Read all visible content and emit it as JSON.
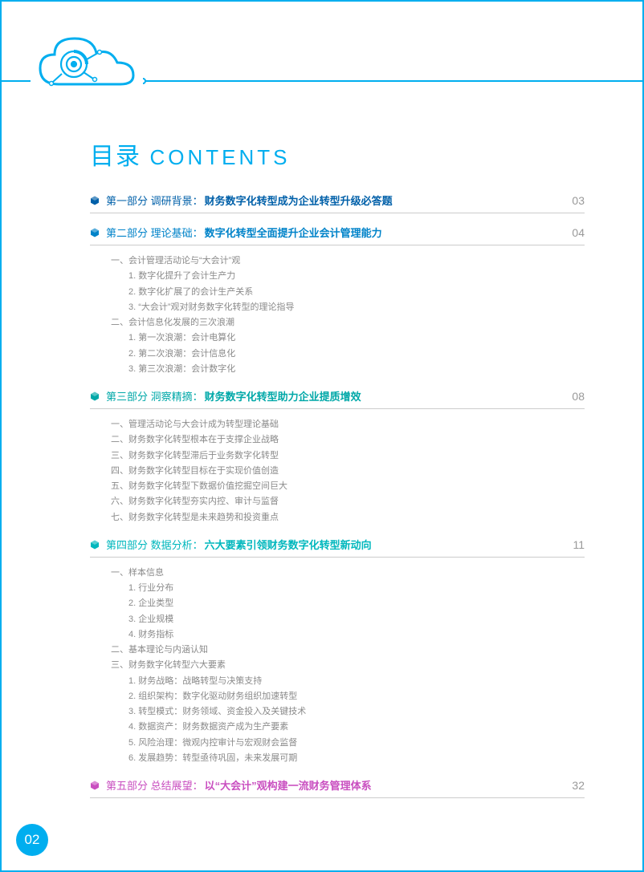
{
  "page_number": "02",
  "title": {
    "cn": "目录",
    "en": "CONTENTS"
  },
  "colors": {
    "accent": "#00aeef",
    "rule": "#cccccc",
    "subtext": "#8a8a8a",
    "pagenum": "#999999",
    "section_colors": [
      "#0060a9",
      "#0083c9",
      "#00a8a8",
      "#00b7bd",
      "#c94fc0"
    ]
  },
  "sections": [
    {
      "part": "第一部分",
      "tag": "调研背景：",
      "topic": "财务数字化转型成为企业转型升级必答题",
      "page": "03",
      "color": "#0060a9",
      "items": []
    },
    {
      "part": "第二部分",
      "tag": "理论基础：",
      "topic": "数字化转型全面提升企业会计管理能力",
      "page": "04",
      "color": "#0083c9",
      "items": [
        {
          "t": "一、会计管理活动论与“大会计”观",
          "l": 1
        },
        {
          "t": "1. 数字化提升了会计生产力",
          "l": 2
        },
        {
          "t": "2. 数字化扩展了的会计生产关系",
          "l": 2
        },
        {
          "t": "3. “大会计”观对财务数字化转型的理论指导",
          "l": 2
        },
        {
          "t": "二、会计信息化发展的三次浪潮",
          "l": 1
        },
        {
          "t": "1. 第一次浪潮：会计电算化",
          "l": 2
        },
        {
          "t": "2. 第二次浪潮：会计信息化",
          "l": 2
        },
        {
          "t": "3. 第三次浪潮：会计数字化",
          "l": 2
        }
      ]
    },
    {
      "part": "第三部分",
      "tag": "洞察精摘：",
      "topic": "财务数字化转型助力企业提质增效",
      "page": "08",
      "color": "#00a8a8",
      "items": [
        {
          "t": "一、管理活动论与大会计成为转型理论基础",
          "l": 1
        },
        {
          "t": "二、财务数字化转型根本在于支撑企业战略",
          "l": 1
        },
        {
          "t": "三、财务数字化转型滞后于业务数字化转型",
          "l": 1
        },
        {
          "t": "四、财务数字化转型目标在于实现价值创造",
          "l": 1
        },
        {
          "t": "五、财务数字化转型下数据价值挖掘空间巨大",
          "l": 1
        },
        {
          "t": "六、财务数字化转型夯实内控、审计与监督",
          "l": 1
        },
        {
          "t": "七、财务数字化转型是未来趋势和投资重点",
          "l": 1
        }
      ]
    },
    {
      "part": "第四部分",
      "tag": "数据分析：",
      "topic": "六大要素引领财务数字化转型新动向",
      "page": "11",
      "color": "#00b7bd",
      "items": [
        {
          "t": "一、样本信息",
          "l": 1
        },
        {
          "t": "1. 行业分布",
          "l": 2
        },
        {
          "t": "2. 企业类型",
          "l": 2
        },
        {
          "t": "3. 企业规模",
          "l": 2
        },
        {
          "t": "4. 财务指标",
          "l": 2
        },
        {
          "t": "二、基本理论与内涵认知",
          "l": 1
        },
        {
          "t": "三、财务数字化转型六大要素",
          "l": 1
        },
        {
          "t": "1. 财务战略：战略转型与决策支持",
          "l": 2
        },
        {
          "t": "2. 组织架构：数字化驱动财务组织加速转型",
          "l": 2
        },
        {
          "t": "3. 转型模式：财务领域、资金投入及关键技术",
          "l": 2
        },
        {
          "t": "4. 数据资产：财务数据资产成为生产要素",
          "l": 2
        },
        {
          "t": "5. 风险治理：微观内控审计与宏观财会监督",
          "l": 2
        },
        {
          "t": "6. 发展趋势：转型亟待巩固，未来发展可期",
          "l": 2
        }
      ]
    },
    {
      "part": "第五部分",
      "tag": "总结展望：",
      "topic": "以“大会计”观构建一流财务管理体系",
      "page": "32",
      "color": "#c94fc0",
      "items": []
    }
  ]
}
